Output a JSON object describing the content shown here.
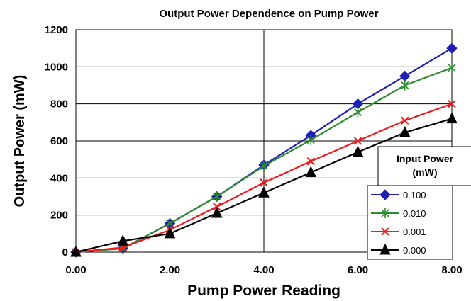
{
  "chart_data": {
    "type": "line",
    "title": "Output Power Dependence on Pump Power",
    "xlabel": "Pump Power Reading",
    "ylabel": "Output Power (mW)",
    "xlim": [
      0,
      8
    ],
    "ylim": [
      0,
      1200
    ],
    "x_ticks": [
      "0.00",
      "2.00",
      "4.00",
      "6.00",
      "8.00"
    ],
    "y_ticks": [
      "0",
      "200",
      "400",
      "600",
      "800",
      "1000",
      "1200"
    ],
    "grid": true,
    "legend_title": "Input Power (mW)",
    "legend_placement": "right",
    "x": [
      0,
      1,
      2,
      3,
      4,
      5,
      6,
      7,
      8
    ],
    "series": [
      {
        "name": "0.100",
        "color": "#1f1fb4",
        "marker": "diamond",
        "values": [
          0,
          20,
          155,
          300,
          470,
          630,
          800,
          950,
          1100
        ]
      },
      {
        "name": "0.010",
        "color": "#2e8b2e",
        "marker": "asterisk",
        "values": [
          0,
          20,
          155,
          300,
          465,
          605,
          755,
          900,
          995
        ]
      },
      {
        "name": "0.001",
        "color": "#ee1c1c",
        "marker": "x",
        "values": [
          0,
          25,
          120,
          245,
          375,
          490,
          600,
          710,
          800
        ]
      },
      {
        "name": "0.000",
        "color": "#000000",
        "marker": "triangle",
        "values": [
          0,
          60,
          100,
          210,
          320,
          430,
          540,
          645,
          720
        ]
      }
    ]
  }
}
